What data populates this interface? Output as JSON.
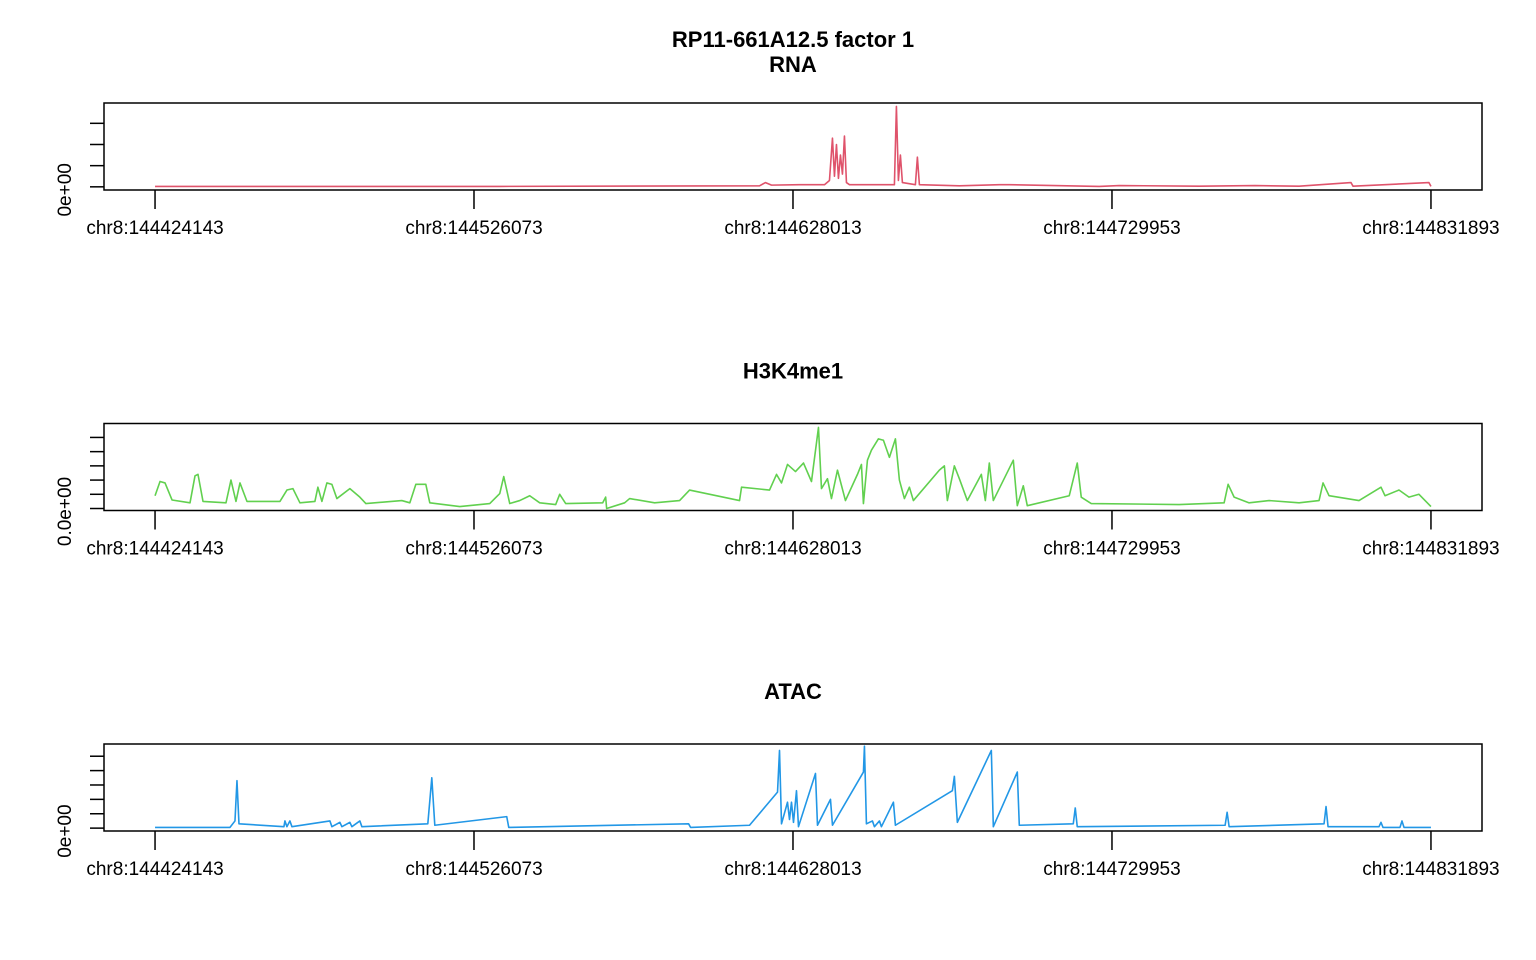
{
  "title": "RP11-661A12.5 factor 1",
  "chart_data": [
    {
      "type": "line",
      "title": "RNA",
      "color": "#DF536B",
      "xlim": [
        144407833,
        144848203
      ],
      "xticks": [
        {
          "value": 144424143,
          "label": "chr8:144424143"
        },
        {
          "value": 144526073,
          "label": "chr8:144526073"
        },
        {
          "value": 144628013,
          "label": "chr8:144628013"
        },
        {
          "value": 144729953,
          "label": "chr8:144729953"
        },
        {
          "value": 144831893,
          "label": "chr8:144831893"
        }
      ],
      "ylim": [
        -0.15,
        3.96
      ],
      "yticks": [
        {
          "value": 0,
          "label": "0e+00"
        },
        {
          "value": 1,
          "label": null
        },
        {
          "value": 2,
          "label": null
        },
        {
          "value": 3,
          "label": null
        }
      ],
      "x": [
        144424143,
        144534302,
        144617320,
        144619235,
        144621151,
        144630092,
        144638074,
        144639671,
        144640628,
        144641267,
        144641906,
        144642544,
        144643183,
        144643821,
        144644460,
        144645099,
        144646057,
        144660425,
        144661064,
        144661702,
        144662341,
        144662979,
        144667130,
        144667769,
        144668408,
        144681180,
        144693952,
        144697145,
        144725882,
        144732268,
        144757812,
        144775692,
        144789742,
        144806345,
        144806984,
        144831251,
        144831893
      ],
      "values": [
        0.02,
        0.02,
        0.05,
        0.2,
        0.08,
        0.1,
        0.1,
        0.3,
        2.3,
        0.5,
        2.0,
        0.4,
        1.5,
        0.6,
        2.4,
        0.2,
        0.1,
        0.1,
        3.8,
        0.3,
        1.5,
        0.2,
        0.1,
        1.4,
        0.1,
        0.05,
        0.1,
        0.1,
        0.02,
        0.06,
        0.03,
        0.06,
        0.03,
        0.2,
        0.03,
        0.2,
        0.02
      ]
    },
    {
      "type": "line",
      "title": "H3K4me1",
      "color": "#61D04F",
      "xlim": [
        144407833,
        144848203
      ],
      "xticks": [
        {
          "value": 144424143,
          "label": "chr8:144424143"
        },
        {
          "value": 144526073,
          "label": "chr8:144526073"
        },
        {
          "value": 144628013,
          "label": "chr8:144628013"
        },
        {
          "value": 144729953,
          "label": "chr8:144729953"
        },
        {
          "value": 144831893,
          "label": "chr8:144831893"
        }
      ],
      "ylim": [
        -0.14,
        5.98
      ],
      "yticks": [
        {
          "value": 0,
          "label": "0.0e+00"
        },
        {
          "value": 1,
          "label": null
        },
        {
          "value": 2,
          "label": null
        },
        {
          "value": 3,
          "label": null
        },
        {
          "value": 4,
          "label": null
        },
        {
          "value": 5,
          "label": null
        }
      ],
      "x": [
        144424143,
        144425740,
        144427337,
        144429572,
        144435319,
        144436916,
        144437873,
        144439470,
        144446814,
        144448410,
        144450007,
        144451284,
        144453519,
        144464056,
        144466291,
        144468207,
        144470442,
        144475232,
        144476189,
        144477467,
        144479063,
        144480660,
        144482256,
        144486407,
        144489600,
        144491516,
        144503011,
        144505565,
        144507481,
        144510674,
        144511951,
        144521530,
        144531109,
        144534302,
        144535579,
        144537495,
        144540688,
        144543881,
        144547074,
        144552183,
        144553460,
        144555376,
        144567190,
        144568148,
        144568467,
        144574215,
        144575811,
        144583794,
        144591776,
        144594969,
        144610934,
        144611573,
        144620513,
        144622748,
        144624345,
        144626260,
        144628815,
        144631369,
        144633924,
        144636159,
        144637117,
        144639032,
        144640310,
        144642225,
        144644780,
        144648611,
        144649889,
        144650527,
        144651804,
        144653082,
        144655317,
        144656913,
        144658829,
        144660745,
        144662022,
        144663619,
        144665215,
        144666492,
        144674794,
        144676391,
        144677348,
        144679584,
        144681180,
        144683734,
        144688205,
        144689482,
        144690759,
        144692036,
        144698422,
        144699699,
        144701615,
        144702892,
        144716303,
        144718857,
        144720135,
        144723328,
        144751426,
        144765795,
        144767072,
        144768988,
        144773777,
        144780163,
        144789742,
        144796128,
        144797405,
        144799321,
        144808900,
        144815925,
        144817202,
        144821672,
        144824865,
        144828058,
        144831893
      ],
      "values": [
        0.9,
        1.9,
        1.8,
        0.6,
        0.4,
        2.3,
        2.4,
        0.5,
        0.4,
        2.0,
        0.5,
        1.8,
        0.5,
        0.5,
        1.3,
        1.4,
        0.4,
        0.5,
        1.5,
        0.5,
        1.8,
        1.7,
        0.7,
        1.4,
        0.8,
        0.35,
        0.56,
        0.4,
        1.7,
        1.7,
        0.4,
        0.14,
        0.35,
        1.05,
        2.25,
        0.35,
        0.56,
        0.9,
        0.4,
        0.28,
        1.0,
        0.35,
        0.4,
        0.8,
        0,
        0.4,
        0.7,
        0.4,
        0.56,
        1.3,
        0.56,
        1.5,
        1.3,
        2.4,
        1.8,
        3.1,
        2.6,
        3.2,
        1.9,
        5.7,
        1.4,
        2.1,
        0.7,
        2.7,
        0.56,
        2.4,
        3.1,
        0.35,
        3.4,
        4.1,
        4.9,
        4.8,
        3.6,
        4.9,
        2.0,
        0.7,
        1.5,
        0.56,
        2.7,
        3.0,
        0.56,
        3.0,
        2.1,
        0.56,
        2.4,
        0.56,
        3.2,
        0.56,
        3.4,
        0.2,
        1.6,
        0.2,
        0.9,
        3.2,
        0.8,
        0.35,
        0.28,
        0.4,
        1.7,
        0.8,
        0.4,
        0.56,
        0.4,
        0.56,
        1.8,
        0.9,
        0.56,
        1.5,
        0.9,
        1.3,
        0.8,
        1.0,
        0.14
      ]
    },
    {
      "type": "line",
      "title": "ATAC",
      "color": "#2297E6",
      "xlim": [
        144407833,
        144848203
      ],
      "xticks": [
        {
          "value": 144424143,
          "label": "chr8:144424143"
        },
        {
          "value": 144526073,
          "label": "chr8:144526073"
        },
        {
          "value": 144628013,
          "label": "chr8:144628013"
        },
        {
          "value": 144729953,
          "label": "chr8:144729953"
        },
        {
          "value": 144831893,
          "label": "chr8:144831893"
        }
      ],
      "ylim": [
        -0.2,
        5.85
      ],
      "yticks": [
        {
          "value": 0,
          "label": "0e+00"
        },
        {
          "value": 1,
          "label": null
        },
        {
          "value": 2,
          "label": null
        },
        {
          "value": 3,
          "label": null
        },
        {
          "value": 4,
          "label": null
        },
        {
          "value": 5,
          "label": null
        }
      ],
      "x": [
        144424143,
        144448091,
        144449688,
        144450326,
        144450965,
        144465333,
        144465653,
        144466291,
        144467249,
        144467888,
        144480021,
        144480660,
        144483214,
        144483853,
        144486407,
        144487046,
        144489600,
        144490239,
        144511313,
        144512590,
        144513548,
        144536537,
        144537176,
        144594650,
        144595288,
        144614127,
        144623067,
        144623706,
        144624345,
        144626260,
        144626899,
        144627537,
        144628176,
        144629134,
        144629773,
        144635201,
        144635840,
        144639991,
        144640629,
        144650527,
        144650847,
        144651485,
        144653401,
        144654040,
        144655636,
        144656275,
        144660106,
        144660745,
        144678945,
        144679584,
        144680541,
        144691398,
        144692036,
        144699699,
        144700338,
        144717580,
        144718219,
        144718857,
        144766114,
        144766752,
        144767391,
        144797725,
        144798363,
        144799002,
        144815286,
        144815925,
        144816564,
        144821991,
        144822630,
        144823269,
        144831893
      ],
      "values": [
        0.05,
        0.05,
        0.5,
        3.3,
        0.3,
        0.1,
        0.5,
        0.1,
        0.5,
        0.1,
        0.5,
        0.1,
        0.4,
        0.1,
        0.4,
        0.1,
        0.5,
        0.1,
        0.3,
        3.5,
        0.2,
        0.8,
        0.05,
        0.3,
        0.05,
        0.2,
        2.5,
        5.4,
        0.3,
        1.8,
        0.6,
        1.8,
        0.4,
        2.6,
        0.1,
        3.8,
        0.2,
        2.0,
        0.2,
        3.9,
        5.7,
        0.3,
        0.5,
        0.1,
        0.5,
        0.1,
        1.8,
        0.2,
        2.6,
        3.6,
        0.4,
        5.4,
        0.1,
        3.9,
        0.2,
        0.3,
        1.4,
        0.1,
        0.2,
        1.1,
        0.1,
        0.3,
        1.5,
        0.1,
        0.1,
        0.4,
        0.05,
        0.05,
        0.5,
        0.05,
        0.05
      ]
    }
  ]
}
